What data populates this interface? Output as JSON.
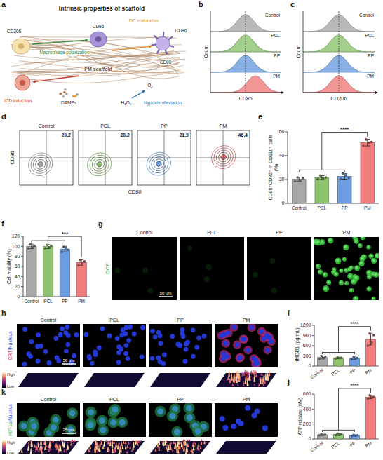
{
  "chart_data": [
    {
      "type": "bar",
      "panel": "e",
      "y_label": "CD80⁺CD86⁺ in CD11c⁺ cells (%)",
      "categories": [
        "Control",
        "PCL",
        "PP",
        "PM"
      ],
      "values": [
        20.2,
        21.6,
        22.6,
        51.0
      ],
      "errors": [
        1.8,
        1.6,
        2.3,
        2.8
      ],
      "points": [
        [
          18.5,
          21.8,
          19.2,
          21.3
        ],
        [
          20.3,
          23.4,
          21.0,
          21.7
        ],
        [
          20.5,
          25.1,
          23.6,
          21.2
        ],
        [
          48.2,
          53.6,
          50.8,
          51.4
        ]
      ],
      "colors": [
        "#a8a8a8",
        "#8dc26e",
        "#6d9de0",
        "#f07c7c"
      ],
      "ylim": [
        0,
        60
      ],
      "yticks": [
        0,
        20,
        40,
        60
      ],
      "annotation": "****"
    },
    {
      "type": "bar",
      "panel": "f",
      "y_label": "Cell viability (%)",
      "categories": [
        "Control",
        "PCL",
        "PP",
        "PM"
      ],
      "values": [
        100,
        99.5,
        94.5,
        68
      ],
      "errors": [
        4.5,
        4,
        5.5,
        5.5
      ],
      "points": [
        [
          96,
          104,
          99,
          101
        ],
        [
          96,
          103,
          98,
          101
        ],
        [
          89,
          99,
          97,
          93
        ],
        [
          62,
          73,
          67,
          70
        ]
      ],
      "colors": [
        "#a8a8a8",
        "#8dc26e",
        "#6d9de0",
        "#f07c7c"
      ],
      "ylim": [
        0,
        120
      ],
      "yticks": [
        0,
        20,
        40,
        60,
        80,
        100,
        120
      ],
      "annotation": "***"
    },
    {
      "type": "bar",
      "panel": "i",
      "y_label": "HMGB1 (pg/mL)",
      "categories": [
        "Control",
        "PCL",
        "PP",
        "PM"
      ],
      "values": [
        255,
        240,
        232,
        790
      ],
      "errors": [
        45,
        22,
        38,
        165
      ],
      "points": [
        [
          210,
          300,
          230,
          280
        ],
        [
          220,
          260,
          235,
          245
        ],
        [
          200,
          270,
          215,
          243
        ],
        [
          600,
          960,
          690,
          910
        ]
      ],
      "colors": [
        "#a8a8a8",
        "#8dc26e",
        "#6d9de0",
        "#f07c7c"
      ],
      "ylim": [
        0,
        1200
      ],
      "yticks": [
        0,
        300,
        600,
        900,
        1200
      ],
      "annotation": "****"
    },
    {
      "type": "bar",
      "panel": "j",
      "y_label": "ATP release (nM)",
      "categories": [
        "Control",
        "PCL",
        "PP",
        "PM"
      ],
      "values": [
        55,
        60,
        47,
        560
      ],
      "errors": [
        8,
        12,
        7,
        20
      ],
      "points": [
        [
          48,
          62,
          52,
          58
        ],
        [
          50,
          72,
          55,
          63
        ],
        [
          40,
          54,
          45,
          49
        ],
        [
          540,
          582,
          555,
          563
        ]
      ],
      "colors": [
        "#a8a8a8",
        "#8dc26e",
        "#6d9de0",
        "#f07c7c"
      ],
      "ylim": [
        0,
        600
      ],
      "yticks": [
        0,
        200,
        400,
        600
      ],
      "annotation": "****"
    }
  ],
  "figure": {
    "groups": [
      "Control",
      "PCL",
      "PP",
      "PM"
    ],
    "group_colors": [
      "#a8a8a8",
      "#8dc26e",
      "#6d9de0",
      "#f07c7c"
    ],
    "schematic": {
      "letter": "a",
      "title": "Intrinsic properties of scaffold",
      "cd206": "CD206",
      "macrophage": "Macrophage polarization",
      "cd86_macrophage": "CD86",
      "dc": "DC maturation",
      "cd86_dc": "CD86",
      "cd80": "CD80",
      "scaffold": "PM scaffold",
      "icd": "ICD induction",
      "damps": "DAMPs",
      "h2o2": "H₂O₂",
      "o2": "O₂",
      "hypoxia": "Hypoxia alleviation"
    },
    "histograms": [
      {
        "letter": "b",
        "marker": "CD86",
        "y_label": "Count",
        "shifted": [
          false,
          false,
          false,
          true
        ]
      },
      {
        "letter": "c",
        "marker": "CD206",
        "y_label": "Count",
        "shifted": [
          false,
          false,
          false,
          false
        ]
      }
    ],
    "flow": {
      "letter": "d",
      "x_label": "CD80",
      "y_label": "CD86",
      "percentages": [
        20.2,
        20.2,
        21.9,
        46.4
      ]
    },
    "dcf": {
      "letter": "g",
      "stain": "DCF",
      "scale_bar": "50 μm",
      "bright": [
        false,
        false,
        false,
        true
      ]
    },
    "crt": {
      "letter": "h",
      "stain": "CRT/Nucleus",
      "scale_bar": "50 μm",
      "bright": [
        false,
        false,
        false,
        true
      ],
      "high": "High",
      "low": "Low"
    },
    "hif": {
      "letter": "k",
      "stain": "HIF-1α/Nucleus",
      "scale_bar": "25 μm",
      "bright": [
        true,
        true,
        true,
        false
      ],
      "high": "High",
      "low": "Low"
    }
  }
}
